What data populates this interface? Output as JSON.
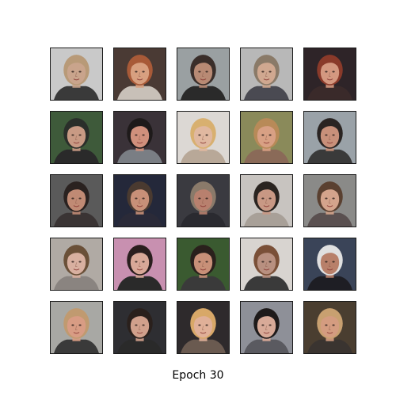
{
  "figure": {
    "caption": "Epoch 30",
    "grid": {
      "rows": 5,
      "cols": 5,
      "samples": [
        {
          "bg": "#c9c9c9",
          "skin": "#c9a48c",
          "hair": "#b89a78",
          "top": "#3a3a3a"
        },
        {
          "bg": "#4a3a34",
          "skin": "#d8a080",
          "hair": "#a85a38",
          "top": "#c8c0b8"
        },
        {
          "bg": "#9aa0a2",
          "skin": "#b88a74",
          "hair": "#3a2e2a",
          "top": "#2a2a2a"
        },
        {
          "bg": "#b8b8b8",
          "skin": "#d0a890",
          "hair": "#8a7a68",
          "top": "#4a4a52"
        },
        {
          "bg": "#2e2428",
          "skin": "#d49880",
          "hair": "#8a3a2a",
          "top": "#3a2a2a"
        },
        {
          "bg": "#3e5a3a",
          "skin": "#c89a84",
          "hair": "#2a2e2a",
          "top": "#2a2a2a"
        },
        {
          "bg": "#3a3238",
          "skin": "#d0907c",
          "hair": "#1e1a1a",
          "top": "#7a7e84"
        },
        {
          "bg": "#dcd8d4",
          "skin": "#e0b8a0",
          "hair": "#d8b070",
          "top": "#b8a898"
        },
        {
          "bg": "#8a8a5a",
          "skin": "#d8a084",
          "hair": "#b88a58",
          "top": "#8a6a58"
        },
        {
          "bg": "#9aa2a8",
          "skin": "#c8907a",
          "hair": "#2a2422",
          "top": "#3a3a3a"
        },
        {
          "bg": "#5a5a5a",
          "skin": "#c08a74",
          "hair": "#2a2220",
          "top": "#3a3434"
        },
        {
          "bg": "#24283a",
          "skin": "#c89078",
          "hair": "#4a3a30",
          "top": "#2a2a38"
        },
        {
          "bg": "#3a3a40",
          "skin": "#b8806e",
          "hair": "#8a7a6a",
          "top": "#2a2a30"
        },
        {
          "bg": "#c8c4c0",
          "skin": "#c89884",
          "hair": "#2a2420",
          "top": "#a8a098"
        },
        {
          "bg": "#8a8a88",
          "skin": "#d4a48c",
          "hair": "#5a4030",
          "top": "#5a5050"
        },
        {
          "bg": "#b0aaa4",
          "skin": "#d8b0a0",
          "hair": "#6a5038",
          "top": "#8a8480"
        },
        {
          "bg": "#c890b0",
          "skin": "#d8a898",
          "hair": "#2a1e1e",
          "top": "#2a2a2a"
        },
        {
          "bg": "#3a5a30",
          "skin": "#c89078",
          "hair": "#2a201c",
          "top": "#3a3a3a"
        },
        {
          "bg": "#d8d4d0",
          "skin": "#b89080",
          "hair": "#7a5038",
          "top": "#3a3a3a"
        },
        {
          "bg": "#3a4458",
          "skin": "#b8806a",
          "hair": "#e0e0e0",
          "top": "#1e1e24"
        },
        {
          "bg": "#a8a8a4",
          "skin": "#d89c84",
          "hair": "#c09a70",
          "top": "#3a3a3a"
        },
        {
          "bg": "#2e2e32",
          "skin": "#d0a08c",
          "hair": "#2a201c",
          "top": "#2a2a2a"
        },
        {
          "bg": "#2e2a2c",
          "skin": "#e0b098",
          "hair": "#d8a868",
          "top": "#6a5a50"
        },
        {
          "bg": "#8e9098",
          "skin": "#d8aa98",
          "hair": "#1e1a1a",
          "top": "#5a5a60"
        },
        {
          "bg": "#4a3e30",
          "skin": "#d49c80",
          "hair": "#c8a070",
          "top": "#3a3430"
        }
      ]
    }
  }
}
